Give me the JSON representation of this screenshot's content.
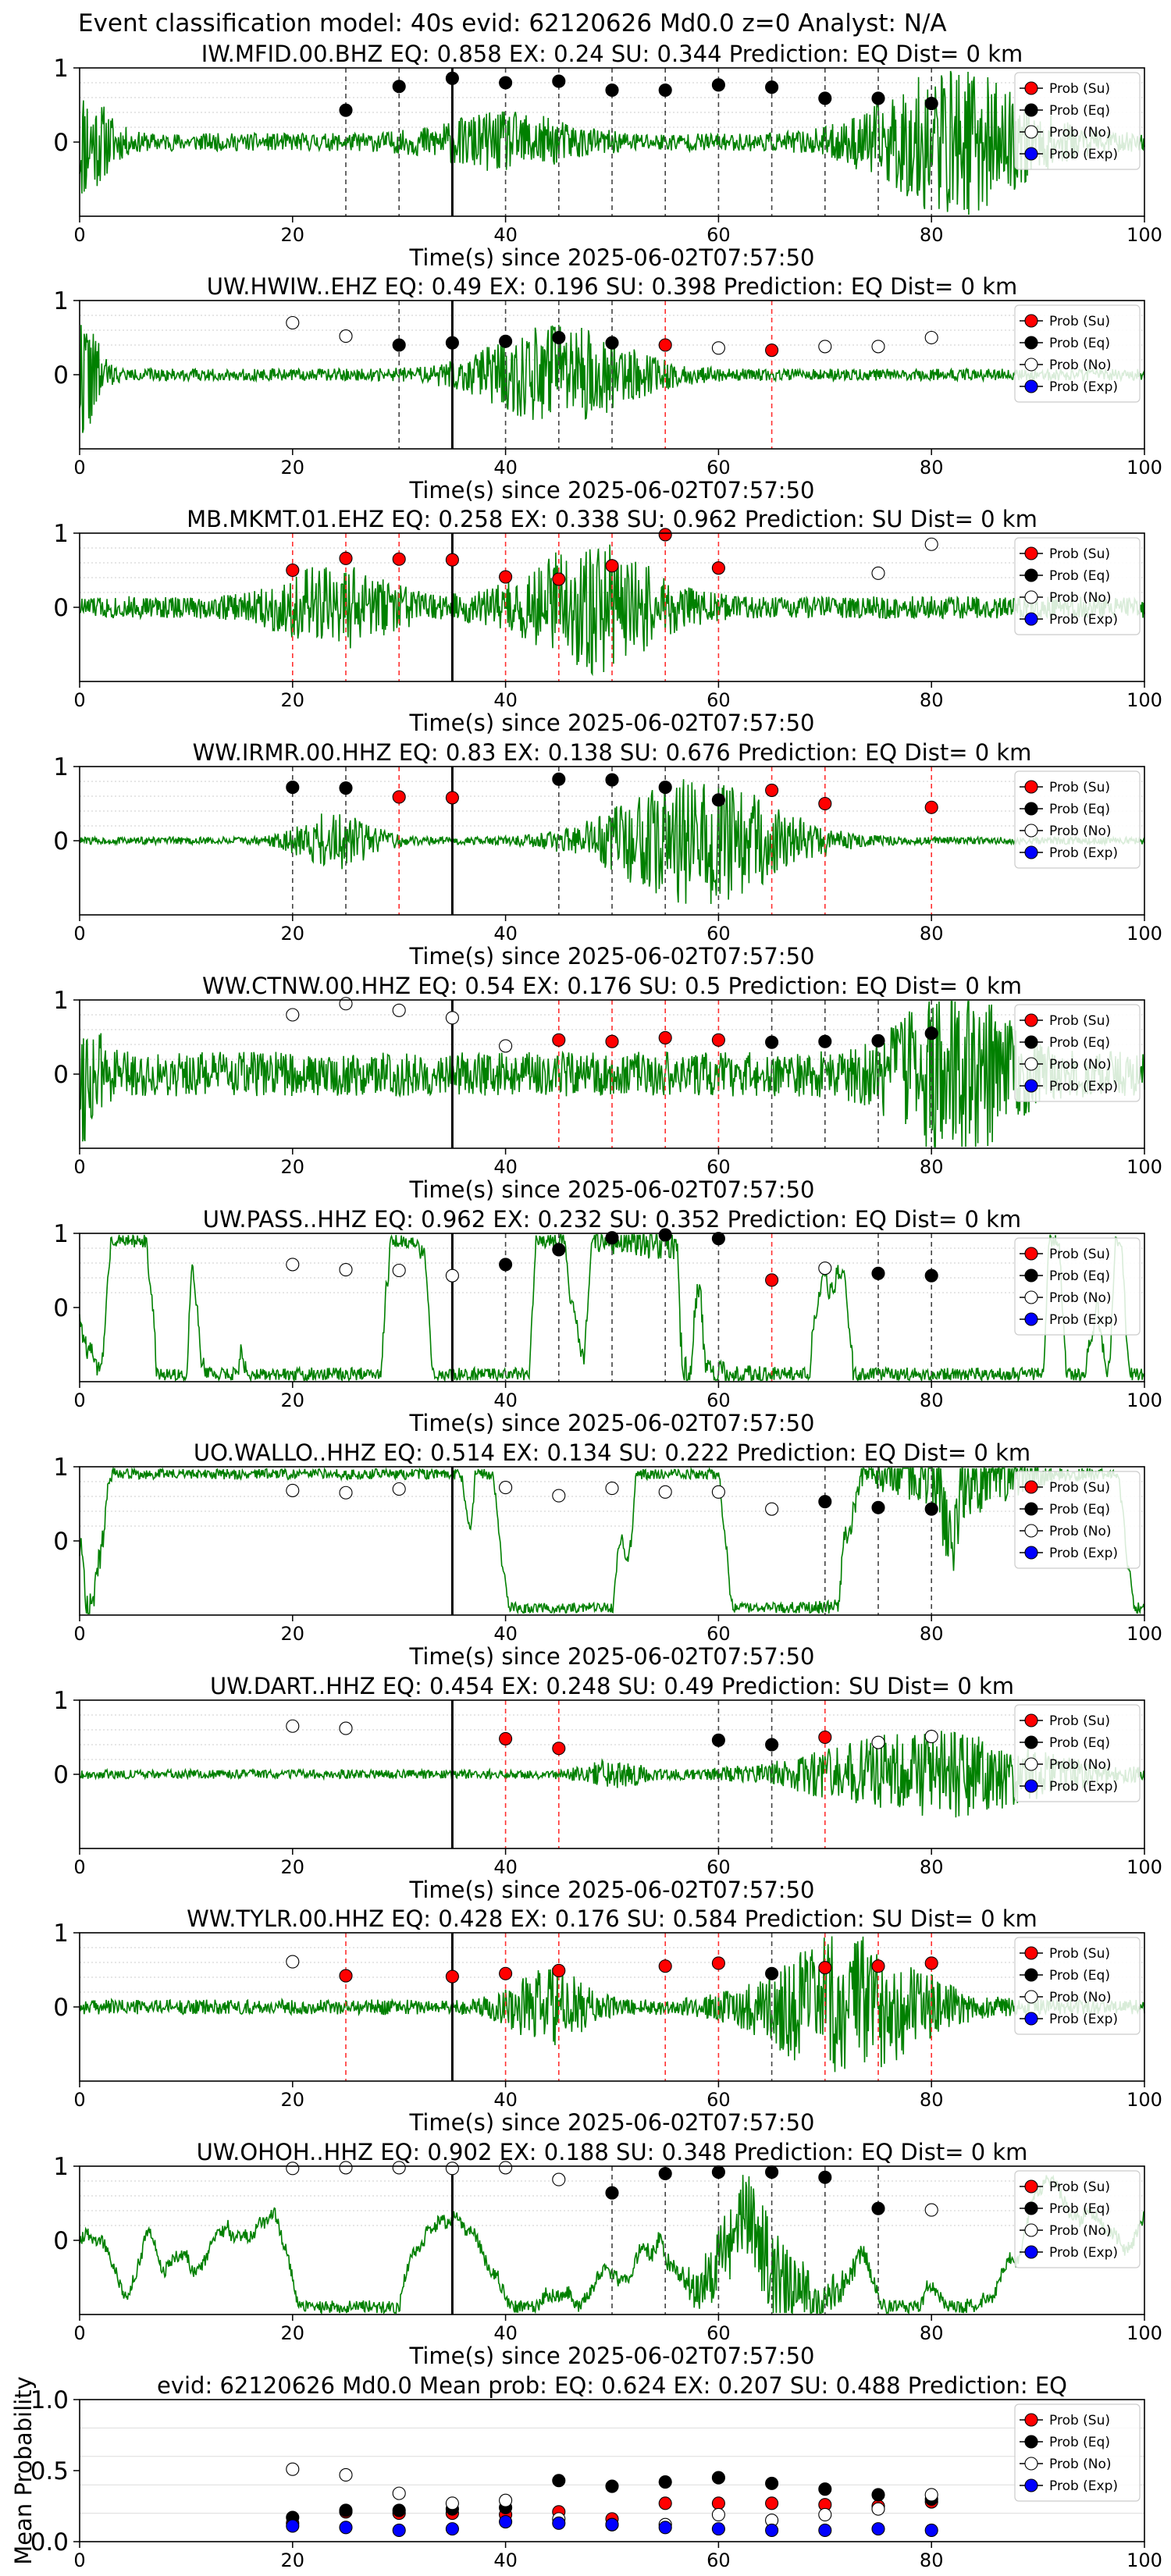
{
  "figure": {
    "title": "Event classification model: 40s evid: 62120626 Md0.0 z=0 Analyst: N/A",
    "xlabel": "Time(s) since 2025-06-02T07:57:50",
    "legend": [
      "Prob (Su)",
      "Prob (Eq)",
      "Prob (No)",
      "Prob (Exp)"
    ],
    "colors": {
      "su": "#ff0000",
      "eq": "#000000",
      "no": "#ffffff",
      "exp": "#0000ff",
      "trace": "#008000"
    }
  },
  "chart_data": [
    {
      "type": "line",
      "title": "IW.MFID.00.BHZ   EQ: 0.858  EX: 0.24  SU: 0.344   Prediction: EQ    Dist= 0 km",
      "xlabel": "Time(s) since 2025-06-02T07:57:50",
      "xlim": [
        0,
        100
      ],
      "ylim": [
        -1,
        1
      ],
      "xticks": [
        0,
        20,
        40,
        60,
        80,
        100
      ],
      "yticks": [
        0,
        1
      ],
      "pick_time": 35,
      "trace": {
        "seed": 11,
        "bursts": [
          [
            0,
            3,
            0.7
          ],
          [
            40,
            7,
            0.3
          ],
          [
            82,
            8,
            0.9
          ]
        ],
        "base": 0.12,
        "lowfreq": 0
      },
      "points": [
        {
          "x": 25,
          "y": 0.43,
          "cls": "eq"
        },
        {
          "x": 30,
          "y": 0.75,
          "cls": "eq"
        },
        {
          "x": 35,
          "y": 0.86,
          "cls": "eq"
        },
        {
          "x": 40,
          "y": 0.8,
          "cls": "eq"
        },
        {
          "x": 45,
          "y": 0.82,
          "cls": "eq"
        },
        {
          "x": 50,
          "y": 0.7,
          "cls": "eq"
        },
        {
          "x": 55,
          "y": 0.7,
          "cls": "eq"
        },
        {
          "x": 60,
          "y": 0.77,
          "cls": "eq"
        },
        {
          "x": 65,
          "y": 0.74,
          "cls": "eq"
        },
        {
          "x": 70,
          "y": 0.59,
          "cls": "eq"
        },
        {
          "x": 75,
          "y": 0.59,
          "cls": "eq"
        },
        {
          "x": 80,
          "y": 0.52,
          "cls": "eq"
        }
      ]
    },
    {
      "type": "line",
      "title": "UW.HWIW..EHZ   EQ: 0.49  EX: 0.196  SU: 0.398   Prediction: EQ    Dist= 0 km",
      "xlabel": "Time(s) since 2025-06-02T07:57:50",
      "xlim": [
        0,
        100
      ],
      "ylim": [
        -1,
        1
      ],
      "xticks": [
        0,
        20,
        40,
        60,
        80,
        100
      ],
      "yticks": [
        0,
        1
      ],
      "pick_time": 35,
      "trace": {
        "seed": 22,
        "bursts": [
          [
            0,
            2,
            0.8
          ],
          [
            45,
            8,
            0.6
          ]
        ],
        "base": 0.08,
        "lowfreq": 0
      },
      "points": [
        {
          "x": 20,
          "y": 0.7,
          "cls": "no"
        },
        {
          "x": 25,
          "y": 0.52,
          "cls": "no"
        },
        {
          "x": 30,
          "y": 0.4,
          "cls": "eq"
        },
        {
          "x": 35,
          "y": 0.43,
          "cls": "eq"
        },
        {
          "x": 40,
          "y": 0.45,
          "cls": "eq"
        },
        {
          "x": 45,
          "y": 0.5,
          "cls": "eq"
        },
        {
          "x": 50,
          "y": 0.43,
          "cls": "eq"
        },
        {
          "x": 55,
          "y": 0.4,
          "cls": "su"
        },
        {
          "x": 60,
          "y": 0.36,
          "cls": "no"
        },
        {
          "x": 65,
          "y": 0.33,
          "cls": "su"
        },
        {
          "x": 70,
          "y": 0.38,
          "cls": "no"
        },
        {
          "x": 75,
          "y": 0.38,
          "cls": "no"
        },
        {
          "x": 80,
          "y": 0.5,
          "cls": "no"
        }
      ]
    },
    {
      "type": "line",
      "title": "MB.MKMT.01.EHZ   EQ: 0.258  EX: 0.338  SU: 0.962   Prediction: SU    Dist= 0 km",
      "xlabel": "Time(s) since 2025-06-02T07:57:50",
      "xlim": [
        0,
        100
      ],
      "ylim": [
        -1,
        1
      ],
      "xticks": [
        0,
        20,
        40,
        60,
        80,
        100
      ],
      "yticks": [
        0,
        1
      ],
      "pick_time": 35,
      "trace": {
        "seed": 33,
        "bursts": [
          [
            24,
            6,
            0.45
          ],
          [
            48,
            7,
            0.75
          ]
        ],
        "base": 0.15,
        "lowfreq": 0
      },
      "points": [
        {
          "x": 20,
          "y": 0.5,
          "cls": "su"
        },
        {
          "x": 25,
          "y": 0.66,
          "cls": "su"
        },
        {
          "x": 30,
          "y": 0.65,
          "cls": "su"
        },
        {
          "x": 35,
          "y": 0.64,
          "cls": "su"
        },
        {
          "x": 40,
          "y": 0.41,
          "cls": "su"
        },
        {
          "x": 45,
          "y": 0.38,
          "cls": "su"
        },
        {
          "x": 50,
          "y": 0.56,
          "cls": "su"
        },
        {
          "x": 55,
          "y": 0.98,
          "cls": "su"
        },
        {
          "x": 60,
          "y": 0.53,
          "cls": "su"
        },
        {
          "x": 75,
          "y": 0.46,
          "cls": "no"
        },
        {
          "x": 80,
          "y": 0.85,
          "cls": "no"
        }
      ]
    },
    {
      "type": "line",
      "title": "WW.IRMR.00.HHZ   EQ: 0.83  EX: 0.138  SU: 0.676   Prediction: EQ    Dist= 0 km",
      "xlabel": "Time(s) since 2025-06-02T07:57:50",
      "xlim": [
        0,
        100
      ],
      "ylim": [
        -1,
        1
      ],
      "xticks": [
        0,
        20,
        40,
        60,
        80,
        100
      ],
      "yticks": [
        0,
        1
      ],
      "pick_time": 35,
      "trace": {
        "seed": 44,
        "bursts": [
          [
            24,
            4,
            0.35
          ],
          [
            58,
            9,
            0.85
          ]
        ],
        "base": 0.05,
        "lowfreq": 0
      },
      "points": [
        {
          "x": 20,
          "y": 0.72,
          "cls": "eq"
        },
        {
          "x": 25,
          "y": 0.71,
          "cls": "eq"
        },
        {
          "x": 30,
          "y": 0.59,
          "cls": "su"
        },
        {
          "x": 35,
          "y": 0.58,
          "cls": "su"
        },
        {
          "x": 45,
          "y": 0.83,
          "cls": "eq"
        },
        {
          "x": 50,
          "y": 0.82,
          "cls": "eq"
        },
        {
          "x": 55,
          "y": 0.72,
          "cls": "eq"
        },
        {
          "x": 60,
          "y": 0.55,
          "cls": "eq"
        },
        {
          "x": 65,
          "y": 0.68,
          "cls": "su"
        },
        {
          "x": 70,
          "y": 0.5,
          "cls": "su"
        },
        {
          "x": 80,
          "y": 0.45,
          "cls": "su"
        }
      ]
    },
    {
      "type": "line",
      "title": "WW.CTNW.00.HHZ   EQ: 0.54  EX: 0.176  SU: 0.5   Prediction: EQ    Dist= 0 km",
      "xlabel": "Time(s) since 2025-06-02T07:57:50",
      "xlim": [
        0,
        100
      ],
      "ylim": [
        -1,
        1
      ],
      "xticks": [
        0,
        20,
        40,
        60,
        80,
        100
      ],
      "yticks": [
        0,
        1
      ],
      "pick_time": 35,
      "trace": {
        "seed": 55,
        "bursts": [
          [
            0,
            2,
            0.7
          ],
          [
            82,
            6,
            0.95
          ]
        ],
        "base": 0.3,
        "lowfreq": 0
      },
      "points": [
        {
          "x": 20,
          "y": 0.8,
          "cls": "no"
        },
        {
          "x": 25,
          "y": 0.95,
          "cls": "no"
        },
        {
          "x": 30,
          "y": 0.86,
          "cls": "no"
        },
        {
          "x": 35,
          "y": 0.76,
          "cls": "no"
        },
        {
          "x": 40,
          "y": 0.38,
          "cls": "no"
        },
        {
          "x": 45,
          "y": 0.46,
          "cls": "su"
        },
        {
          "x": 50,
          "y": 0.44,
          "cls": "su"
        },
        {
          "x": 55,
          "y": 0.49,
          "cls": "su"
        },
        {
          "x": 60,
          "y": 0.46,
          "cls": "su"
        },
        {
          "x": 65,
          "y": 0.43,
          "cls": "eq"
        },
        {
          "x": 70,
          "y": 0.44,
          "cls": "eq"
        },
        {
          "x": 75,
          "y": 0.45,
          "cls": "eq"
        },
        {
          "x": 80,
          "y": 0.55,
          "cls": "eq"
        }
      ]
    },
    {
      "type": "line",
      "title": "UW.PASS..HHZ   EQ: 0.962  EX: 0.232  SU: 0.352   Prediction: EQ    Dist= 0 km",
      "xlabel": "Time(s) since 2025-06-02T07:57:50",
      "xlim": [
        0,
        100
      ],
      "ylim": [
        -1,
        1
      ],
      "xticks": [
        0,
        20,
        40,
        60,
        80,
        100
      ],
      "yticks": [
        0,
        1
      ],
      "pick_time": 35,
      "trace": {
        "seed": 66,
        "bursts": [
          [
            55,
            6,
            0.3
          ]
        ],
        "base": 0.15,
        "lowfreq": 0.6
      },
      "points": [
        {
          "x": 20,
          "y": 0.58,
          "cls": "no"
        },
        {
          "x": 25,
          "y": 0.51,
          "cls": "no"
        },
        {
          "x": 30,
          "y": 0.5,
          "cls": "no"
        },
        {
          "x": 35,
          "y": 0.43,
          "cls": "no"
        },
        {
          "x": 40,
          "y": 0.58,
          "cls": "eq"
        },
        {
          "x": 45,
          "y": 0.78,
          "cls": "eq"
        },
        {
          "x": 50,
          "y": 0.94,
          "cls": "eq"
        },
        {
          "x": 55,
          "y": 0.98,
          "cls": "eq"
        },
        {
          "x": 60,
          "y": 0.93,
          "cls": "eq"
        },
        {
          "x": 65,
          "y": 0.37,
          "cls": "su"
        },
        {
          "x": 70,
          "y": 0.53,
          "cls": "no"
        },
        {
          "x": 75,
          "y": 0.46,
          "cls": "eq"
        },
        {
          "x": 80,
          "y": 0.43,
          "cls": "eq"
        }
      ]
    },
    {
      "type": "line",
      "title": "UO.WALLO..HHZ   EQ: 0.514  EX: 0.134  SU: 0.222   Prediction: EQ    Dist= 0 km",
      "xlabel": "Time(s) since 2025-06-02T07:57:50",
      "xlim": [
        0,
        100
      ],
      "ylim": [
        -1,
        1
      ],
      "xticks": [
        0,
        20,
        40,
        60,
        80,
        100
      ],
      "yticks": [
        0,
        1
      ],
      "pick_time": 35,
      "trace": {
        "seed": 77,
        "bursts": [
          [
            0,
            2,
            0.5
          ],
          [
            82,
            7,
            0.8
          ]
        ],
        "base": 0.12,
        "lowfreq": 0.35
      },
      "points": [
        {
          "x": 20,
          "y": 0.68,
          "cls": "no"
        },
        {
          "x": 25,
          "y": 0.65,
          "cls": "no"
        },
        {
          "x": 30,
          "y": 0.7,
          "cls": "no"
        },
        {
          "x": 40,
          "y": 0.72,
          "cls": "no"
        },
        {
          "x": 45,
          "y": 0.61,
          "cls": "no"
        },
        {
          "x": 50,
          "y": 0.71,
          "cls": "no"
        },
        {
          "x": 55,
          "y": 0.66,
          "cls": "no"
        },
        {
          "x": 60,
          "y": 0.66,
          "cls": "no"
        },
        {
          "x": 65,
          "y": 0.43,
          "cls": "no"
        },
        {
          "x": 70,
          "y": 0.53,
          "cls": "eq"
        },
        {
          "x": 75,
          "y": 0.45,
          "cls": "eq"
        },
        {
          "x": 80,
          "y": 0.43,
          "cls": "eq"
        }
      ]
    },
    {
      "type": "line",
      "title": "UW.DART..HHZ   EQ: 0.454  EX: 0.248  SU: 0.49   Prediction: SU    Dist= 0 km",
      "xlabel": "Time(s) since 2025-06-02T07:57:50",
      "xlim": [
        0,
        100
      ],
      "ylim": [
        -1,
        1
      ],
      "xticks": [
        0,
        20,
        40,
        60,
        80,
        100
      ],
      "yticks": [
        0,
        1
      ],
      "pick_time": 35,
      "trace": {
        "seed": 88,
        "bursts": [
          [
            50,
            3,
            0.15
          ],
          [
            80,
            12,
            0.55
          ]
        ],
        "base": 0.06,
        "lowfreq": 0
      },
      "points": [
        {
          "x": 20,
          "y": 0.65,
          "cls": "no"
        },
        {
          "x": 25,
          "y": 0.62,
          "cls": "no"
        },
        {
          "x": 40,
          "y": 0.48,
          "cls": "su"
        },
        {
          "x": 45,
          "y": 0.35,
          "cls": "su"
        },
        {
          "x": 60,
          "y": 0.46,
          "cls": "eq"
        },
        {
          "x": 65,
          "y": 0.4,
          "cls": "eq"
        },
        {
          "x": 70,
          "y": 0.5,
          "cls": "su"
        },
        {
          "x": 75,
          "y": 0.43,
          "cls": "no"
        },
        {
          "x": 80,
          "y": 0.51,
          "cls": "no"
        }
      ]
    },
    {
      "type": "line",
      "title": "WW.TYLR.00.HHZ   EQ: 0.428  EX: 0.176  SU: 0.584   Prediction: SU    Dist= 0 km",
      "xlabel": "Time(s) since 2025-06-02T07:57:50",
      "xlim": [
        0,
        100
      ],
      "ylim": [
        -1,
        1
      ],
      "xticks": [
        0,
        20,
        40,
        60,
        80,
        100
      ],
      "yticks": [
        0,
        1
      ],
      "pick_time": 35,
      "trace": {
        "seed": 99,
        "bursts": [
          [
            44,
            4,
            0.45
          ],
          [
            72,
            8,
            0.9
          ]
        ],
        "base": 0.1,
        "lowfreq": 0
      },
      "points": [
        {
          "x": 20,
          "y": 0.61,
          "cls": "no"
        },
        {
          "x": 25,
          "y": 0.42,
          "cls": "su"
        },
        {
          "x": 35,
          "y": 0.41,
          "cls": "su"
        },
        {
          "x": 40,
          "y": 0.45,
          "cls": "su"
        },
        {
          "x": 45,
          "y": 0.49,
          "cls": "su"
        },
        {
          "x": 55,
          "y": 0.55,
          "cls": "su"
        },
        {
          "x": 60,
          "y": 0.59,
          "cls": "su"
        },
        {
          "x": 65,
          "y": 0.45,
          "cls": "eq"
        },
        {
          "x": 70,
          "y": 0.53,
          "cls": "su"
        },
        {
          "x": 75,
          "y": 0.55,
          "cls": "su"
        },
        {
          "x": 80,
          "y": 0.59,
          "cls": "su"
        }
      ]
    },
    {
      "type": "line",
      "title": "UW.OHOH..HHZ   EQ: 0.902  EX: 0.188  SU: 0.348   Prediction: EQ    Dist= 0 km",
      "xlabel": "Time(s) since 2025-06-02T07:57:50",
      "xlim": [
        0,
        100
      ],
      "ylim": [
        -1,
        1
      ],
      "xticks": [
        0,
        20,
        40,
        60,
        80,
        100
      ],
      "yticks": [
        0,
        1
      ],
      "pick_time": 35,
      "trace": {
        "seed": 111,
        "bursts": [
          [
            64,
            6,
            0.95
          ]
        ],
        "base": 0.15,
        "lowfreq": 0.1
      },
      "points": [
        {
          "x": 20,
          "y": 0.97,
          "cls": "no"
        },
        {
          "x": 25,
          "y": 0.98,
          "cls": "no"
        },
        {
          "x": 30,
          "y": 0.98,
          "cls": "no"
        },
        {
          "x": 35,
          "y": 0.97,
          "cls": "no"
        },
        {
          "x": 40,
          "y": 0.98,
          "cls": "no"
        },
        {
          "x": 45,
          "y": 0.82,
          "cls": "no"
        },
        {
          "x": 50,
          "y": 0.64,
          "cls": "eq"
        },
        {
          "x": 55,
          "y": 0.9,
          "cls": "eq"
        },
        {
          "x": 60,
          "y": 0.92,
          "cls": "eq"
        },
        {
          "x": 65,
          "y": 0.92,
          "cls": "eq"
        },
        {
          "x": 70,
          "y": 0.85,
          "cls": "eq"
        },
        {
          "x": 75,
          "y": 0.43,
          "cls": "eq"
        },
        {
          "x": 80,
          "y": 0.41,
          "cls": "no"
        }
      ]
    },
    {
      "type": "scatter",
      "title": "evid: 62120626  Md0.0   Mean prob:   EQ: 0.624  EX: 0.207  SU: 0.488   Prediction: EQ",
      "ylabel": "Mean Probability",
      "xlim": [
        0,
        100
      ],
      "ylim": [
        0,
        1
      ],
      "xticks": [
        0,
        20,
        40,
        60,
        80,
        100
      ],
      "yticks": [
        0,
        0.5,
        1
      ],
      "x": [
        20,
        25,
        30,
        35,
        40,
        45,
        50,
        55,
        60,
        65,
        70,
        75,
        80
      ],
      "series": [
        {
          "name": "Prob (Su)",
          "cls": "su",
          "values": [
            0.13,
            0.21,
            0.2,
            0.2,
            0.19,
            0.21,
            0.16,
            0.27,
            0.27,
            0.27,
            0.26,
            0.25,
            0.28
          ]
        },
        {
          "name": "Prob (Eq)",
          "cls": "eq",
          "values": [
            0.17,
            0.22,
            0.22,
            0.23,
            0.24,
            0.43,
            0.39,
            0.42,
            0.45,
            0.41,
            0.37,
            0.33,
            0.3
          ]
        },
        {
          "name": "Prob (No)",
          "cls": "no",
          "values": [
            0.51,
            0.47,
            0.34,
            0.27,
            0.29,
            0.16,
            0.12,
            0.12,
            0.19,
            0.15,
            0.19,
            0.23,
            0.33
          ]
        },
        {
          "name": "Prob (Exp)",
          "cls": "exp",
          "values": [
            0.11,
            0.1,
            0.08,
            0.09,
            0.14,
            0.13,
            0.12,
            0.1,
            0.09,
            0.08,
            0.08,
            0.09,
            0.08
          ]
        }
      ]
    }
  ]
}
